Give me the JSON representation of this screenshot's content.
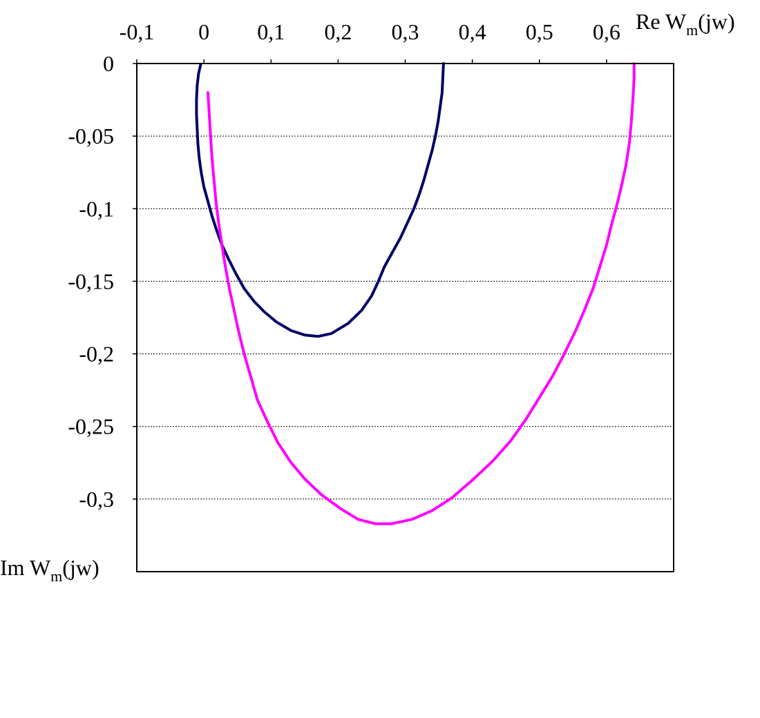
{
  "chart_data": {
    "type": "line",
    "title": "",
    "xlabel": {
      "prefix": "Re W",
      "subscript": "m",
      "suffix": "(jw)"
    },
    "ylabel": {
      "prefix": "Im W",
      "subscript": "m",
      "suffix": "(jw)"
    },
    "xlim": [
      -0.1,
      0.7
    ],
    "ylim": [
      -0.35,
      0
    ],
    "x_axis_position": "top",
    "x_ticks": [
      -0.1,
      0,
      0.1,
      0.2,
      0.3,
      0.4,
      0.5,
      0.6
    ],
    "x_tick_labels": [
      "-0,1",
      "0",
      "0,1",
      "0,2",
      "0,3",
      "0,4",
      "0,5",
      "0,6"
    ],
    "y_ticks": [
      0,
      -0.05,
      -0.1,
      -0.15,
      -0.2,
      -0.25,
      -0.3
    ],
    "y_tick_labels": [
      "0",
      "-0,05",
      "-0,1",
      "-0,15",
      "-0,2",
      "-0,25",
      "-0,3"
    ],
    "grid": "horizontal dashed",
    "legend": "none",
    "series": [
      {
        "color": "#000066",
        "points": [
          [
            0.357,
            0.0
          ],
          [
            0.356,
            -0.01
          ],
          [
            0.355,
            -0.02
          ],
          [
            0.352,
            -0.03
          ],
          [
            0.349,
            -0.04
          ],
          [
            0.345,
            -0.05
          ],
          [
            0.34,
            -0.06
          ],
          [
            0.334,
            -0.07
          ],
          [
            0.328,
            -0.08
          ],
          [
            0.321,
            -0.09
          ],
          [
            0.313,
            -0.1
          ],
          [
            0.303,
            -0.11
          ],
          [
            0.293,
            -0.12
          ],
          [
            0.281,
            -0.13
          ],
          [
            0.269,
            -0.14
          ],
          [
            0.26,
            -0.15
          ],
          [
            0.25,
            -0.16
          ],
          [
            0.235,
            -0.17
          ],
          [
            0.215,
            -0.179
          ],
          [
            0.19,
            -0.186
          ],
          [
            0.17,
            -0.188
          ],
          [
            0.15,
            -0.187
          ],
          [
            0.13,
            -0.184
          ],
          [
            0.108,
            -0.178
          ],
          [
            0.09,
            -0.171
          ],
          [
            0.075,
            -0.164
          ],
          [
            0.06,
            -0.155
          ],
          [
            0.048,
            -0.145
          ],
          [
            0.037,
            -0.135
          ],
          [
            0.027,
            -0.125
          ],
          [
            0.019,
            -0.115
          ],
          [
            0.012,
            -0.105
          ],
          [
            0.006,
            -0.095
          ],
          [
            0.0,
            -0.085
          ],
          [
            -0.004,
            -0.075
          ],
          [
            -0.007,
            -0.065
          ],
          [
            -0.009,
            -0.055
          ],
          [
            -0.01,
            -0.045
          ],
          [
            -0.011,
            -0.035
          ],
          [
            -0.011,
            -0.025
          ],
          [
            -0.01,
            -0.015
          ],
          [
            -0.008,
            -0.007
          ],
          [
            -0.005,
            -0.001
          ]
        ]
      },
      {
        "color": "#ff00ff",
        "points": [
          [
            0.641,
            0.0
          ],
          [
            0.641,
            -0.01
          ],
          [
            0.64,
            -0.02
          ],
          [
            0.637,
            -0.04
          ],
          [
            0.634,
            -0.055
          ],
          [
            0.629,
            -0.07
          ],
          [
            0.622,
            -0.085
          ],
          [
            0.614,
            -0.1
          ],
          [
            0.608,
            -0.11
          ],
          [
            0.6,
            -0.125
          ],
          [
            0.59,
            -0.14
          ],
          [
            0.58,
            -0.155
          ],
          [
            0.567,
            -0.17
          ],
          [
            0.553,
            -0.185
          ],
          [
            0.537,
            -0.2
          ],
          [
            0.52,
            -0.215
          ],
          [
            0.5,
            -0.23
          ],
          [
            0.48,
            -0.245
          ],
          [
            0.457,
            -0.26
          ],
          [
            0.43,
            -0.274
          ],
          [
            0.4,
            -0.287
          ],
          [
            0.37,
            -0.299
          ],
          [
            0.34,
            -0.308
          ],
          [
            0.31,
            -0.314
          ],
          [
            0.28,
            -0.317
          ],
          [
            0.255,
            -0.317
          ],
          [
            0.23,
            -0.314
          ],
          [
            0.205,
            -0.307
          ],
          [
            0.175,
            -0.297
          ],
          [
            0.15,
            -0.286
          ],
          [
            0.13,
            -0.275
          ],
          [
            0.11,
            -0.261
          ],
          [
            0.095,
            -0.247
          ],
          [
            0.08,
            -0.232
          ],
          [
            0.07,
            -0.216
          ],
          [
            0.06,
            -0.2
          ],
          [
            0.052,
            -0.185
          ],
          [
            0.045,
            -0.17
          ],
          [
            0.038,
            -0.155
          ],
          [
            0.032,
            -0.14
          ],
          [
            0.027,
            -0.125
          ],
          [
            0.022,
            -0.11
          ],
          [
            0.018,
            -0.095
          ],
          [
            0.015,
            -0.08
          ],
          [
            0.012,
            -0.065
          ],
          [
            0.01,
            -0.05
          ],
          [
            0.008,
            -0.035
          ],
          [
            0.006,
            -0.02
          ]
        ]
      }
    ]
  }
}
